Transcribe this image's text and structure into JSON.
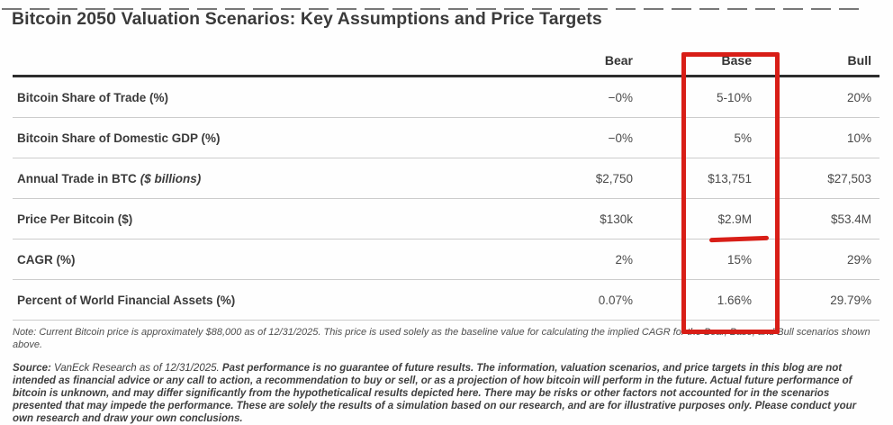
{
  "chart_data": {
    "type": "table",
    "title": "Bitcoin 2050 Valuation Scenarios: Key Assumptions and Price Targets",
    "columns": [
      "Bear",
      "Base",
      "Bull"
    ],
    "rows": [
      {
        "label": "Bitcoin Share of Trade (%)",
        "bear": "−0%",
        "base": "5-10%",
        "bull": "20%"
      },
      {
        "label": "Bitcoin Share of Domestic GDP (%)",
        "bear": "−0%",
        "base": "5%",
        "bull": "10%"
      },
      {
        "label": "Annual Trade in BTC",
        "label_suffix": "($ billions)",
        "bear": "$2,750",
        "base": "$13,751",
        "bull": "$27,503"
      },
      {
        "label": "Price Per Bitcoin ($)",
        "bear": "$130k",
        "base": "$2.9M",
        "bull": "$53.4M"
      },
      {
        "label": "CAGR (%)",
        "bear": "2%",
        "base": "15%",
        "bull": "29%"
      },
      {
        "label": "Percent of World Financial Assets (%)",
        "bear": "0.07%",
        "base": "1.66%",
        "bull": "29.79%"
      }
    ]
  },
  "annotations": {
    "highlighted_column": "Base",
    "underlined_value": "$2.9M",
    "accent_color": "#d81e17"
  },
  "note": "Note: Current Bitcoin price is approximately $88,000 as of 12/31/2025. This price is used solely as the baseline value for calculating the implied CAGR for the Bear, Base, and Bull scenarios shown above.",
  "source": {
    "prefix": "Source: ",
    "citation": "VanEck Research as of 12/31/2025. ",
    "body": "Past performance is no guarantee of future results. The information, valuation scenarios, and price targets in this blog are not intended as financial advice or any call to action, a recommendation to buy or sell, or as a projection of how bitcoin will perform in the future. Actual future performance of bitcoin is unknown, and may differ significantly from the hypotheticalical results depicted here. There may be risks or other factors not accounted for in the scenarios presented that may impede the performance. These are solely the results of a simulation based on our research, and are for illustrative purposes only. Please conduct your own research and draw your own conclusions."
  }
}
